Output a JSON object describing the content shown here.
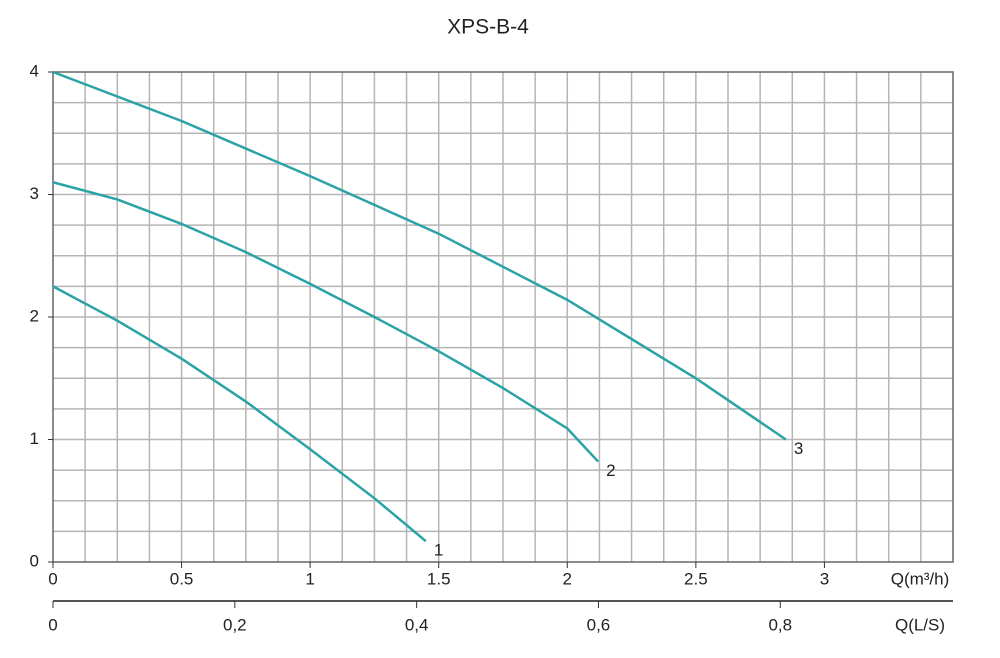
{
  "chart_data": {
    "type": "line",
    "title": "XPS-B-4",
    "x_label": "Q(m³/h)",
    "x2_label": "Q(L/S)",
    "xlim": [
      0,
      3.5
    ],
    "xticks": [
      0,
      0.5,
      1,
      1.5,
      2,
      2.5,
      3
    ],
    "x2lim": [
      0,
      0.99
    ],
    "x2ticks": [
      0,
      {
        "value": 0.2,
        "label": "0,2"
      },
      {
        "value": 0.4,
        "label": "0,4"
      },
      {
        "value": 0.6,
        "label": "0,6"
      },
      {
        "value": 0.8,
        "label": "0,8"
      }
    ],
    "ylim": [
      0,
      4
    ],
    "yticks": [
      0,
      1,
      2,
      3,
      4
    ],
    "grid": true,
    "grid_xstep": 0.125,
    "grid_ystep": 0.25,
    "series": [
      {
        "name": "1",
        "color": "#2ba3a6",
        "x": [
          0,
          0.25,
          0.5,
          0.75,
          1.0,
          1.25,
          1.45
        ],
        "values": [
          2.25,
          1.97,
          1.66,
          1.31,
          0.92,
          0.52,
          0.17
        ]
      },
      {
        "name": "2",
        "color": "#2ba3a6",
        "x": [
          0,
          0.25,
          0.5,
          0.75,
          1.0,
          1.25,
          1.5,
          1.75,
          2.0,
          2.12
        ],
        "values": [
          3.1,
          2.96,
          2.76,
          2.53,
          2.27,
          2.0,
          1.72,
          1.42,
          1.09,
          0.82
        ]
      },
      {
        "name": "3",
        "color": "#2ba3a6",
        "x": [
          0,
          0.5,
          1.0,
          1.5,
          2.0,
          2.5,
          2.85
        ],
        "values": [
          4.0,
          3.6,
          3.15,
          2.68,
          2.14,
          1.5,
          1.0
        ]
      }
    ]
  }
}
